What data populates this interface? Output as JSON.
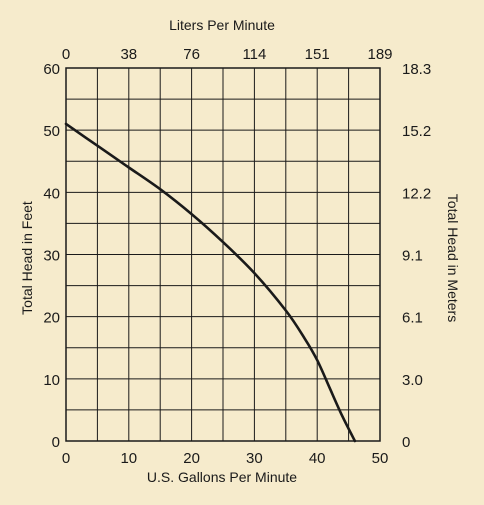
{
  "chart_data": {
    "type": "line",
    "xlabel": "U.S. Gallons Per Minute",
    "ylabel": "Total Head in Feet",
    "x2label": "Liters Per Minute",
    "y2label": "Total Head in Meters",
    "xlim": [
      0,
      50
    ],
    "ylim": [
      0,
      60
    ],
    "grid": true,
    "x_ticks": [
      "0",
      "10",
      "20",
      "30",
      "40",
      "50"
    ],
    "y_ticks": [
      "0",
      "10",
      "20",
      "30",
      "40",
      "50",
      "60"
    ],
    "x2_ticks": [
      "0",
      "38",
      "76",
      "114",
      "151",
      "189"
    ],
    "y2_ticks": [
      "0",
      "3.0",
      "6.1",
      "9.1",
      "12.2",
      "15.2",
      "18.3"
    ],
    "series": [
      {
        "x": [
          0,
          5,
          10,
          15,
          20,
          25,
          30,
          35,
          38,
          40,
          42,
          44,
          46
        ],
        "y": [
          51,
          47.5,
          44,
          40.5,
          36.5,
          32,
          27,
          21,
          16.5,
          13,
          8.5,
          4,
          0
        ]
      }
    ],
    "colors": {
      "background": "#f6ebcc",
      "line": "#1a1a1a",
      "grid": "#1a1a1a"
    }
  }
}
